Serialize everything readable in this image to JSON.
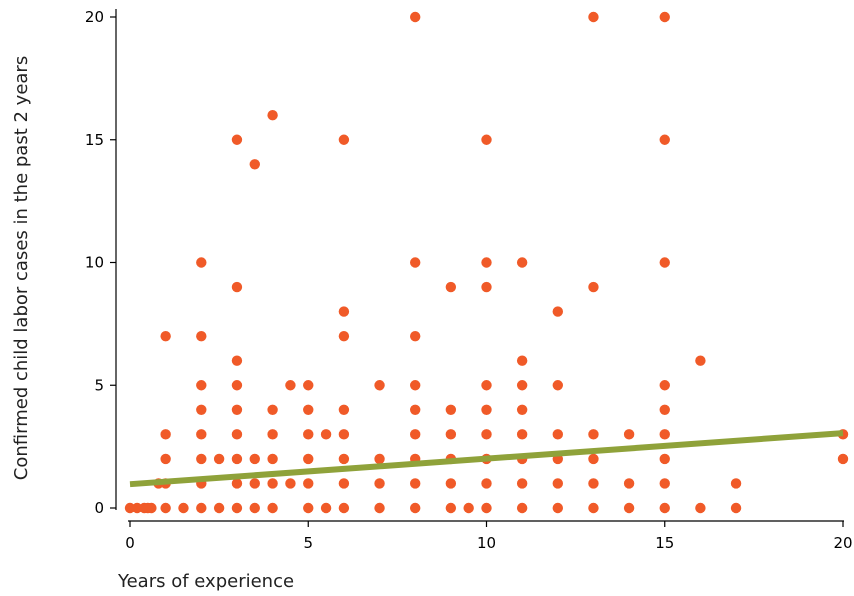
{
  "chart_data": {
    "type": "scatter",
    "title": "",
    "xlabel": "Years of experience",
    "ylabel": "Confirmed child labor cases in the past 2 years",
    "xlim": [
      0,
      20
    ],
    "ylim": [
      0,
      20
    ],
    "xticks": [
      0,
      5,
      10,
      15,
      20
    ],
    "yticks": [
      0,
      5,
      10,
      15,
      20
    ],
    "grid": false,
    "legend": "none",
    "point_color": "#f05a28",
    "fit_color": "#8fa23a",
    "points": [
      [
        0,
        0
      ],
      [
        0.2,
        0
      ],
      [
        0.4,
        0
      ],
      [
        0.5,
        0
      ],
      [
        0.6,
        0
      ],
      [
        0.8,
        1
      ],
      [
        1,
        0
      ],
      [
        1,
        1
      ],
      [
        1,
        2
      ],
      [
        1,
        3
      ],
      [
        1,
        7
      ],
      [
        1.5,
        0
      ],
      [
        2,
        0
      ],
      [
        2,
        1
      ],
      [
        2,
        2
      ],
      [
        2,
        3
      ],
      [
        2,
        4
      ],
      [
        2,
        5
      ],
      [
        2,
        7
      ],
      [
        2,
        10
      ],
      [
        2.5,
        0
      ],
      [
        2.5,
        2
      ],
      [
        3,
        0
      ],
      [
        3,
        1
      ],
      [
        3,
        2
      ],
      [
        3,
        3
      ],
      [
        3,
        4
      ],
      [
        3,
        5
      ],
      [
        3,
        6
      ],
      [
        3,
        9
      ],
      [
        3,
        15
      ],
      [
        3.5,
        0
      ],
      [
        3.5,
        1
      ],
      [
        3.5,
        2
      ],
      [
        3.5,
        14
      ],
      [
        4,
        0
      ],
      [
        4,
        1
      ],
      [
        4,
        2
      ],
      [
        4,
        3
      ],
      [
        4,
        4
      ],
      [
        4,
        16
      ],
      [
        4.5,
        1
      ],
      [
        4.5,
        5
      ],
      [
        5,
        0
      ],
      [
        5,
        1
      ],
      [
        5,
        2
      ],
      [
        5,
        3
      ],
      [
        5,
        4
      ],
      [
        5,
        5
      ],
      [
        5.5,
        0
      ],
      [
        5.5,
        3
      ],
      [
        6,
        0
      ],
      [
        6,
        1
      ],
      [
        6,
        2
      ],
      [
        6,
        3
      ],
      [
        6,
        4
      ],
      [
        6,
        7
      ],
      [
        6,
        8
      ],
      [
        6,
        15
      ],
      [
        7,
        0
      ],
      [
        7,
        1
      ],
      [
        7,
        2
      ],
      [
        7,
        5
      ],
      [
        8,
        0
      ],
      [
        8,
        1
      ],
      [
        8,
        2
      ],
      [
        8,
        3
      ],
      [
        8,
        4
      ],
      [
        8,
        5
      ],
      [
        8,
        7
      ],
      [
        8,
        10
      ],
      [
        8,
        20
      ],
      [
        9,
        0
      ],
      [
        9,
        1
      ],
      [
        9,
        2
      ],
      [
        9,
        3
      ],
      [
        9,
        4
      ],
      [
        9,
        9
      ],
      [
        9.5,
        0
      ],
      [
        10,
        0
      ],
      [
        10,
        1
      ],
      [
        10,
        2
      ],
      [
        10,
        3
      ],
      [
        10,
        4
      ],
      [
        10,
        5
      ],
      [
        10,
        9
      ],
      [
        10,
        10
      ],
      [
        10,
        15
      ],
      [
        11,
        0
      ],
      [
        11,
        1
      ],
      [
        11,
        2
      ],
      [
        11,
        3
      ],
      [
        11,
        4
      ],
      [
        11,
        5
      ],
      [
        11,
        6
      ],
      [
        11,
        10
      ],
      [
        12,
        0
      ],
      [
        12,
        1
      ],
      [
        12,
        2
      ],
      [
        12,
        3
      ],
      [
        12,
        5
      ],
      [
        12,
        8
      ],
      [
        13,
        0
      ],
      [
        13,
        1
      ],
      [
        13,
        2
      ],
      [
        13,
        3
      ],
      [
        13,
        9
      ],
      [
        13,
        20
      ],
      [
        14,
        0
      ],
      [
        14,
        1
      ],
      [
        14,
        3
      ],
      [
        15,
        0
      ],
      [
        15,
        1
      ],
      [
        15,
        2
      ],
      [
        15,
        3
      ],
      [
        15,
        4
      ],
      [
        15,
        5
      ],
      [
        15,
        10
      ],
      [
        15,
        15
      ],
      [
        15,
        20
      ],
      [
        16,
        0
      ],
      [
        16,
        6
      ],
      [
        17,
        0
      ],
      [
        17,
        1
      ],
      [
        20,
        2
      ],
      [
        20,
        3
      ]
    ],
    "fit_line": {
      "x": [
        0,
        20
      ],
      "y": [
        0.97,
        3.05
      ]
    }
  }
}
